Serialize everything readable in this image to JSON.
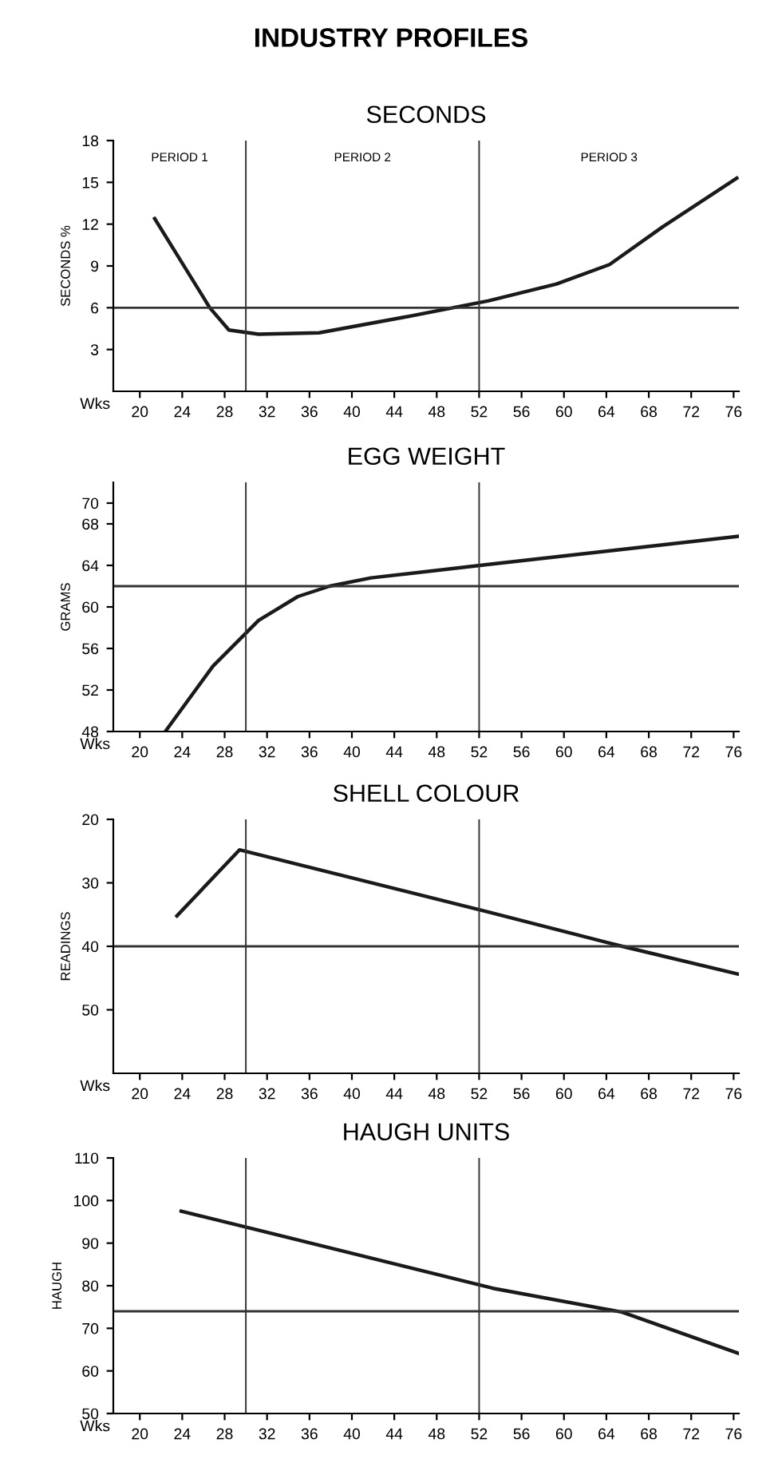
{
  "chart_data": [
    {
      "type": "line",
      "title": "INDUSTRY PROFILES",
      "subtitle": "SECONDS",
      "ylabel": "SECONDS %",
      "x": [
        21.4,
        26.6,
        28.4,
        31.2,
        36.9,
        44.8,
        52.9,
        59.3,
        64.3,
        69.3,
        76.3
      ],
      "series": [
        {
          "color": "#1a1a1a",
          "values": [
            12.4,
            6.0,
            4.4,
            4.1,
            4.2,
            5.3,
            6.5,
            7.7,
            9.1,
            11.8,
            15.3
          ]
        }
      ],
      "xlabel": "Wks",
      "xlim": [
        17.5,
        76.5
      ],
      "xticks": [
        20,
        24,
        28,
        32,
        36,
        40,
        44,
        48,
        52,
        56,
        60,
        64,
        68,
        72,
        76
      ],
      "ylim": [
        0,
        18
      ],
      "yticks": [
        3,
        6,
        9,
        12,
        15,
        18
      ],
      "ref_lines": [
        {
          "axis": "x",
          "value": 30
        },
        {
          "axis": "x",
          "value": 52
        },
        {
          "axis": "y",
          "value": 6
        }
      ],
      "annotations": [
        "PERIOD 1",
        "PERIOD 2",
        "PERIOD 3"
      ]
    },
    {
      "type": "line",
      "title": "EGG WEIGHT",
      "ylabel": "GRAMS",
      "x": [
        22.4,
        26.9,
        31.2,
        34.9,
        37.9,
        41.8,
        52.9,
        64.3,
        76.5
      ],
      "series": [
        {
          "color": "#1a1a1a",
          "values": [
            48,
            54.3,
            58.7,
            61,
            62,
            62.8,
            64.1,
            65.4,
            66.8
          ]
        }
      ],
      "xlabel": "Wks",
      "xlim": [
        17.5,
        76.5
      ],
      "xticks": [
        20,
        24,
        28,
        32,
        36,
        40,
        44,
        48,
        52,
        56,
        60,
        64,
        68,
        72,
        76
      ],
      "ylim": [
        48,
        72
      ],
      "yticks": [
        48,
        52,
        56,
        60,
        64,
        68,
        70
      ],
      "ref_lines": [
        {
          "axis": "x",
          "value": 30
        },
        {
          "axis": "x",
          "value": 52
        },
        {
          "axis": "y",
          "value": 62
        }
      ]
    },
    {
      "type": "line",
      "title": "SHELL COLOUR",
      "ylabel": "READINGS",
      "x": [
        23.5,
        29.4,
        52.9,
        65.5,
        76.5
      ],
      "series": [
        {
          "color": "#1a1a1a",
          "values": [
            35.2,
            24.8,
            34.6,
            40,
            44.4
          ]
        }
      ],
      "xlabel": "Wks",
      "xlim": [
        17.5,
        76.5
      ],
      "xticks": [
        20,
        24,
        28,
        32,
        36,
        40,
        44,
        48,
        52,
        56,
        60,
        64,
        68,
        72,
        76
      ],
      "ylim": [
        60,
        20
      ],
      "yticks": [
        20,
        30,
        40,
        50
      ],
      "ref_lines": [
        {
          "axis": "x",
          "value": 30
        },
        {
          "axis": "x",
          "value": 52
        },
        {
          "axis": "y",
          "value": 40
        }
      ]
    },
    {
      "type": "line",
      "title": "HAUGH UNITS",
      "ylabel": "HAUGH",
      "x": [
        23.9,
        31.4,
        53.3,
        65.5,
        76.5
      ],
      "series": [
        {
          "color": "#1a1a1a",
          "values": [
            97.5,
            92.9,
            79.4,
            73.8,
            64.1
          ]
        }
      ],
      "xlabel": "Wks",
      "xlim": [
        17.5,
        76.5
      ],
      "xticks": [
        20,
        24,
        28,
        32,
        36,
        40,
        44,
        48,
        52,
        56,
        60,
        64,
        68,
        72,
        76
      ],
      "ylim": [
        50,
        110
      ],
      "yticks": [
        50,
        60,
        70,
        80,
        90,
        100,
        110
      ],
      "ref_lines": [
        {
          "axis": "x",
          "value": 30
        },
        {
          "axis": "x",
          "value": 52
        },
        {
          "axis": "y",
          "value": 74
        }
      ]
    }
  ]
}
